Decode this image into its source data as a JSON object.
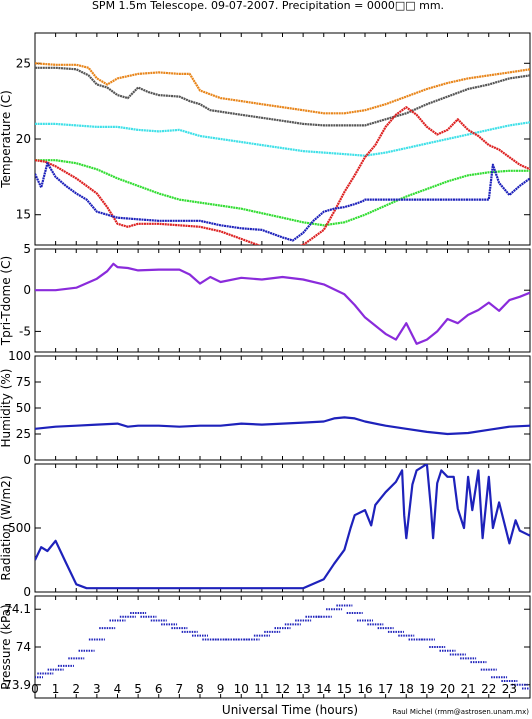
{
  "chart_data": {
    "title": "SPM 1.5m Telescope. 09-07-2007. Precipitation = 0000□□ mm.",
    "xlabel": "Universal Time (hours)",
    "credit": "Raul Michel (rmm@astrosen.unam.mx)",
    "x_ticks": [
      "0",
      "1",
      "2",
      "3",
      "4",
      "5",
      "6",
      "7",
      "8",
      "9",
      "10",
      "11",
      "12",
      "13",
      "14",
      "15",
      "16",
      "17",
      "18",
      "19",
      "20",
      "21",
      "22",
      "23"
    ],
    "xlim": [
      0,
      24
    ],
    "panels": [
      {
        "type": "line",
        "ylabel": "Temperature (C)",
        "ylim": [
          13,
          27
        ],
        "y_ticks": [
          {
            "v": 15,
            "label": "15"
          },
          {
            "v": 20,
            "label": "20"
          },
          {
            "v": 25,
            "label": "25"
          }
        ],
        "series": [
          {
            "color": "#e8851a",
            "x": [
              0,
              1,
              2,
              2.6,
              3,
              3.5,
              4,
              5,
              6,
              7,
              7.5,
              8,
              9,
              10,
              11,
              12,
              13,
              14,
              15,
              16,
              17,
              18,
              19,
              20,
              21,
              22,
              23,
              24
            ],
            "y": [
              25.0,
              24.9,
              24.9,
              24.7,
              24.0,
              23.6,
              24.0,
              24.3,
              24.4,
              24.3,
              24.3,
              23.2,
              22.7,
              22.5,
              22.3,
              22.1,
              21.9,
              21.7,
              21.7,
              21.9,
              22.3,
              22.8,
              23.3,
              23.7,
              24.0,
              24.2,
              24.4,
              24.6
            ]
          },
          {
            "color": "#555555",
            "x": [
              0,
              1,
              2,
              2.6,
              3,
              3.5,
              4,
              4.5,
              5,
              5.5,
              6,
              7,
              7.5,
              8,
              8.5,
              9,
              10,
              11,
              12,
              13,
              14,
              15,
              16,
              17,
              18,
              19,
              20,
              21,
              22,
              23,
              24
            ],
            "y": [
              24.7,
              24.7,
              24.6,
              24.2,
              23.6,
              23.4,
              22.9,
              22.7,
              23.4,
              23.1,
              22.9,
              22.8,
              22.5,
              22.3,
              21.9,
              21.8,
              21.6,
              21.4,
              21.2,
              21.0,
              20.9,
              20.9,
              20.9,
              21.3,
              21.7,
              22.3,
              22.8,
              23.3,
              23.6,
              24.0,
              24.2
            ]
          },
          {
            "color": "#3ee0e8",
            "x": [
              0,
              1,
              2,
              3,
              4,
              5,
              6,
              7,
              8,
              9,
              10,
              11,
              12,
              13,
              14,
              15,
              16,
              17,
              18,
              19,
              20,
              21,
              22,
              23,
              24
            ],
            "y": [
              21.0,
              21.0,
              20.9,
              20.8,
              20.8,
              20.6,
              20.5,
              20.6,
              20.2,
              20.0,
              19.8,
              19.6,
              19.4,
              19.2,
              19.1,
              19.0,
              18.9,
              19.1,
              19.4,
              19.7,
              20.0,
              20.3,
              20.6,
              20.9,
              21.1
            ]
          },
          {
            "color": "#33dd33",
            "x": [
              0,
              1,
              2,
              3,
              4,
              5,
              6,
              7,
              8,
              9,
              10,
              11,
              12,
              13,
              14,
              15,
              16,
              17,
              18,
              19,
              20,
              21,
              22,
              23,
              24
            ],
            "y": [
              18.6,
              18.6,
              18.4,
              18.0,
              17.4,
              16.9,
              16.4,
              16.0,
              15.8,
              15.6,
              15.4,
              15.1,
              14.8,
              14.5,
              14.3,
              14.5,
              15.0,
              15.6,
              16.2,
              16.7,
              17.2,
              17.6,
              17.8,
              17.9,
              17.9
            ]
          },
          {
            "color": "#dd2222",
            "x": [
              0,
              0.5,
              1,
              1.5,
              2,
              2.5,
              3,
              3.5,
              4,
              4.5,
              5,
              6,
              7,
              8,
              9,
              10,
              11,
              12,
              13,
              14,
              14.5,
              15,
              15.5,
              16,
              16.5,
              17,
              17.5,
              18,
              18.5,
              19,
              19.5,
              20,
              20.5,
              21,
              21.5,
              22,
              22.5,
              23,
              23.5,
              24
            ],
            "y": [
              18.6,
              18.5,
              18.2,
              17.8,
              17.4,
              16.9,
              16.4,
              15.5,
              14.4,
              14.2,
              14.4,
              14.4,
              14.3,
              14.2,
              13.9,
              13.4,
              12.9,
              12.6,
              13.0,
              14.0,
              15.2,
              16.5,
              17.6,
              18.8,
              19.6,
              20.8,
              21.6,
              22.1,
              21.6,
              20.8,
              20.3,
              20.6,
              21.3,
              20.6,
              20.2,
              19.6,
              19.3,
              18.8,
              18.3,
              18.0
            ]
          },
          {
            "color": "#1e22bb",
            "x": [
              0,
              0.3,
              0.6,
              1,
              1.5,
              2,
              2.5,
              3,
              3.5,
              4,
              5,
              6,
              7,
              8,
              9,
              10,
              11,
              12,
              12.5,
              13,
              13.5,
              14,
              14.5,
              15,
              15.5,
              15.9,
              16,
              17,
              18,
              19,
              20,
              21,
              22,
              22.2,
              22.5,
              23,
              23.5,
              24
            ],
            "y": [
              17.7,
              16.8,
              18.4,
              17.5,
              16.9,
              16.4,
              16.0,
              15.2,
              15.0,
              14.8,
              14.7,
              14.6,
              14.6,
              14.6,
              14.3,
              14.1,
              14.0,
              13.5,
              13.3,
              13.8,
              14.6,
              15.2,
              15.4,
              15.5,
              15.7,
              15.9,
              16.0,
              16.0,
              16.0,
              16.0,
              16.0,
              16.0,
              16.0,
              18.3,
              17.1,
              16.3,
              16.9,
              17.4
            ]
          }
        ]
      },
      {
        "type": "line",
        "ylabel": "Tpri-Tdome (C)",
        "ylim": [
          -7.5,
          5
        ],
        "y_ticks": [
          {
            "v": 5,
            "label": "5"
          },
          {
            "v": 0,
            "label": "0"
          },
          {
            "v": -5,
            "label": "-5"
          }
        ],
        "series": [
          {
            "color": "#8a2bdb",
            "x": [
              0,
              1,
              2,
              3,
              3.5,
              3.8,
              4,
              4.5,
              5,
              6,
              7,
              7.5,
              8,
              8.5,
              9,
              10,
              11,
              12,
              13,
              14,
              15,
              15.5,
              16,
              16.5,
              17,
              17.5,
              18,
              18.5,
              19,
              19.5,
              20,
              20.5,
              21,
              21.5,
              22,
              22.5,
              23,
              23.5,
              24
            ],
            "y": [
              0.0,
              0.0,
              0.3,
              1.4,
              2.3,
              3.2,
              2.8,
              2.7,
              2.4,
              2.5,
              2.5,
              1.9,
              0.8,
              1.6,
              1.0,
              1.5,
              1.3,
              1.6,
              1.3,
              0.7,
              -0.5,
              -1.8,
              -3.3,
              -4.3,
              -5.3,
              -6.0,
              -4.0,
              -6.5,
              -6.0,
              -5.0,
              -3.5,
              -4.0,
              -3.0,
              -2.4,
              -1.5,
              -2.5,
              -1.2,
              -0.8,
              -0.3
            ]
          }
        ]
      },
      {
        "type": "line",
        "ylabel": "Humidity (%)",
        "ylim": [
          0,
          100
        ],
        "y_ticks": [
          {
            "v": 0,
            "label": "0"
          },
          {
            "v": 25,
            "label": "25"
          },
          {
            "v": 50,
            "label": "50"
          },
          {
            "v": 75,
            "label": "75"
          },
          {
            "v": 100,
            "label": "100"
          }
        ],
        "series": [
          {
            "color": "#1e22bb",
            "x": [
              0,
              1,
              2,
              3,
              4,
              4.5,
              5,
              6,
              7,
              8,
              9,
              10,
              11,
              12,
              13,
              14,
              14.5,
              15,
              15.5,
              16,
              17,
              18,
              19,
              20,
              21,
              22,
              23,
              24
            ],
            "y": [
              30,
              32,
              33,
              34,
              35,
              32,
              33,
              33,
              32,
              33,
              33,
              35,
              34,
              35,
              36,
              37,
              40,
              41,
              40,
              37,
              33,
              30,
              27,
              25,
              26,
              29,
              32,
              33
            ]
          }
        ]
      },
      {
        "type": "line",
        "ylabel": "Radiation (W/m2)",
        "ylim": [
          0,
          1000
        ],
        "y_ticks": [
          {
            "v": 0,
            "label": "0"
          },
          {
            "v": 500,
            "label": "500"
          }
        ],
        "series": [
          {
            "color": "#1e22bb",
            "x": [
              0,
              0.3,
              0.6,
              1,
              1.5,
              2,
              2.5,
              3,
              4,
              6,
              8,
              10,
              12,
              13,
              14,
              14.5,
              15,
              15.3,
              15.5,
              16,
              16.3,
              16.5,
              17,
              17.5,
              17.8,
              17.9,
              18,
              18.3,
              18.5,
              19,
              19.2,
              19.3,
              19.5,
              19.7,
              20,
              20.3,
              20.5,
              20.8,
              21,
              21.2,
              21.5,
              21.7,
              22,
              22.2,
              22.5,
              23,
              23.3,
              23.5,
              24
            ],
            "y": [
              250,
              350,
              320,
              400,
              230,
              60,
              30,
              30,
              30,
              30,
              30,
              30,
              30,
              30,
              100,
              220,
              330,
              500,
              600,
              640,
              520,
              680,
              780,
              860,
              950,
              600,
              420,
              840,
              950,
              1000,
              650,
              420,
              850,
              950,
              900,
              900,
              650,
              500,
              900,
              640,
              950,
              420,
              900,
              500,
              700,
              380,
              560,
              480,
              440
            ]
          }
        ]
      },
      {
        "type": "scatter",
        "ylabel": "Pressure (kPa)",
        "ylim": [
          73.865,
          74.135
        ],
        "y_ticks": [
          {
            "v": 73.9,
            "label": "73.9"
          },
          {
            "v": 74.0,
            "label": "74"
          },
          {
            "v": 74.1,
            "label": "74.1"
          }
        ],
        "series": [
          {
            "color": "#1e22bb",
            "x": [
              0,
              0.5,
              1,
              1.5,
              2,
              2.5,
              3,
              3.5,
              4,
              4.5,
              5,
              5.5,
              6,
              6.5,
              7,
              7.5,
              8,
              8.5,
              9,
              9.5,
              10,
              10.5,
              11,
              11.5,
              12,
              12.5,
              13,
              13.5,
              14,
              14.5,
              15,
              15.5,
              16,
              16.5,
              17,
              17.5,
              18,
              18.5,
              19,
              19.5,
              20,
              20.5,
              21,
              21.5,
              22,
              22.5,
              23,
              23.5,
              24
            ],
            "y": [
              73.92,
              73.93,
              73.94,
              73.95,
              73.97,
              73.99,
              74.02,
              74.05,
              74.07,
              74.08,
              74.09,
              74.08,
              74.07,
              74.06,
              74.05,
              74.04,
              74.03,
              74.02,
              74.02,
              74.02,
              74.02,
              74.02,
              74.03,
              74.04,
              74.05,
              74.06,
              74.07,
              74.08,
              74.08,
              74.1,
              74.11,
              74.09,
              74.07,
              74.06,
              74.05,
              74.04,
              74.03,
              74.02,
              74.02,
              74.0,
              73.99,
              73.98,
              73.97,
              73.96,
              73.94,
              73.92,
              73.91,
              73.9,
              73.89
            ]
          }
        ]
      }
    ]
  }
}
